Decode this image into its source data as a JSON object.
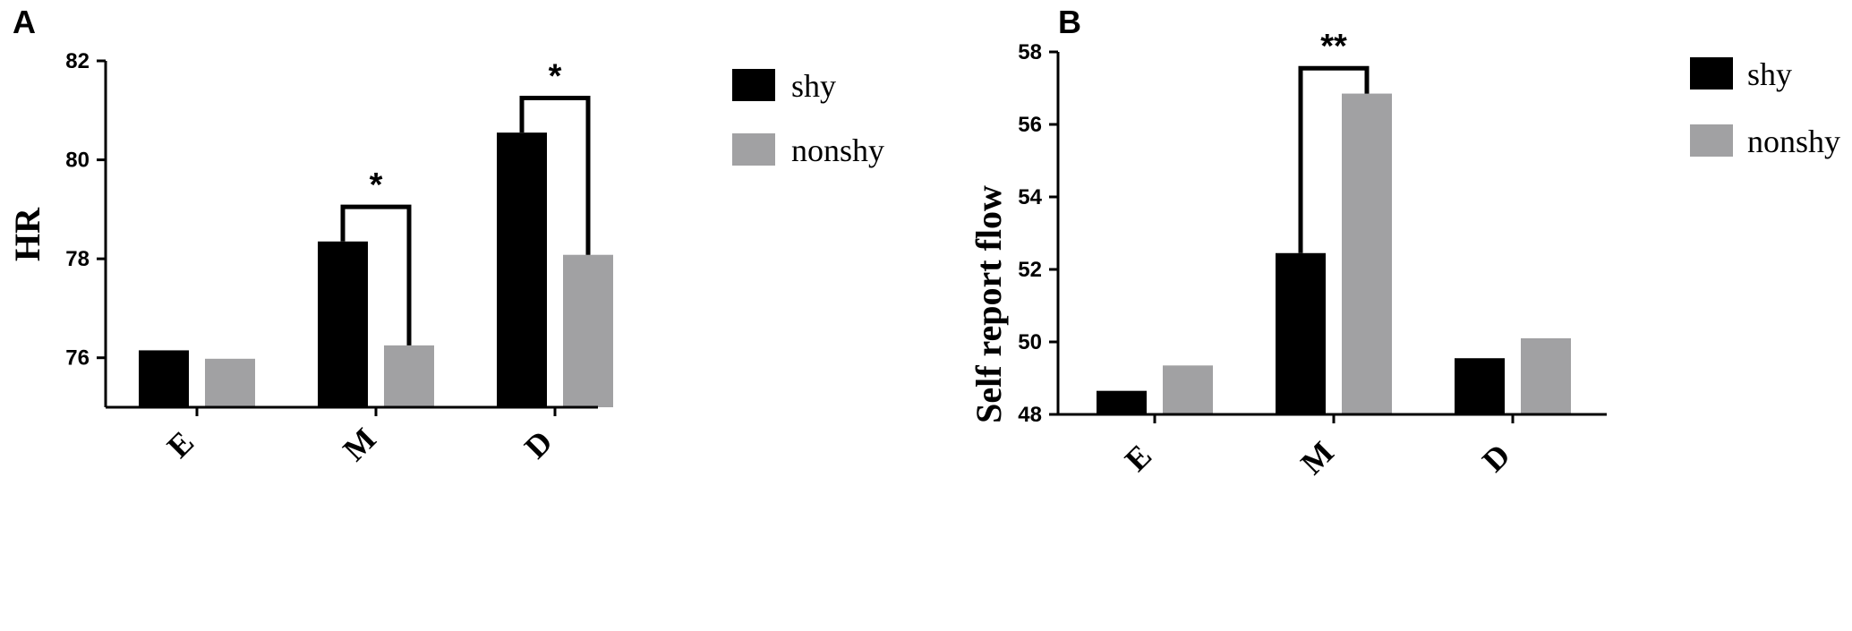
{
  "colors": {
    "shy": "#000000",
    "nonshy": "#a1a1a3"
  },
  "chart_data": [
    {
      "panel": "A",
      "type": "bar",
      "ylabel": "HR",
      "xlabel": "",
      "categories": [
        "E",
        "M",
        "D"
      ],
      "ylim": [
        75,
        82
      ],
      "yticks": [
        "76",
        "78",
        "80",
        "82"
      ],
      "series": [
        {
          "name": "shy",
          "values": [
            76.15,
            78.35,
            80.55
          ]
        },
        {
          "name": "nonshy",
          "values": [
            75.98,
            76.25,
            78.08
          ]
        }
      ],
      "significance": [
        {
          "category": "M",
          "label": "*",
          "bracket_y": 79.05
        },
        {
          "category": "D",
          "label": "*",
          "bracket_y": 81.25
        }
      ],
      "legend": [
        "shy",
        "nonshy"
      ],
      "legend_position": "top-right"
    },
    {
      "panel": "B",
      "type": "bar",
      "ylabel": "Self report flow",
      "xlabel": "",
      "categories": [
        "E",
        "M",
        "D"
      ],
      "ylim": [
        48,
        58
      ],
      "yticks": [
        "48",
        "50",
        "52",
        "54",
        "56",
        "58"
      ],
      "series": [
        {
          "name": "shy",
          "values": [
            48.65,
            52.45,
            49.55
          ]
        },
        {
          "name": "nonshy",
          "values": [
            49.35,
            56.85,
            50.1
          ]
        }
      ],
      "significance": [
        {
          "category": "M",
          "label": "**",
          "bracket_y": 57.55
        }
      ],
      "legend": [
        "shy",
        "nonshy"
      ],
      "legend_position": "top-right"
    }
  ]
}
